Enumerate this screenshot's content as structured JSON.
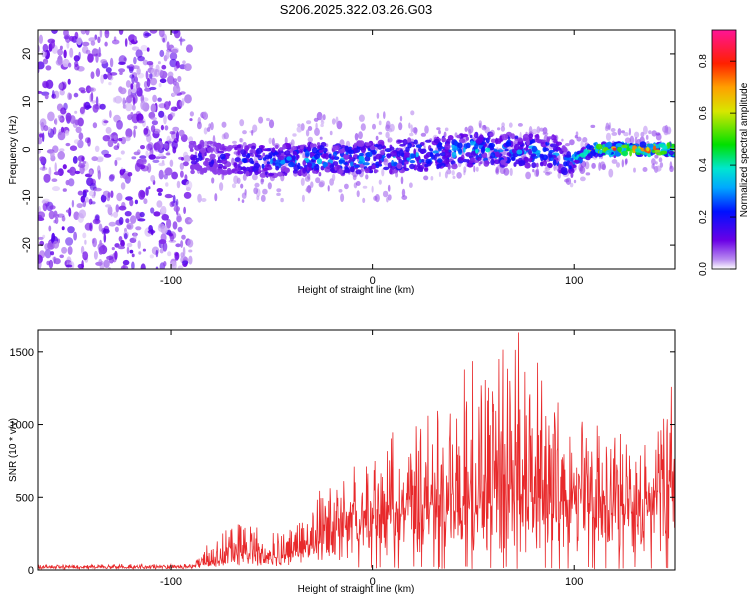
{
  "title": "S206.2025.322.03.26.G03",
  "chart_data": [
    {
      "type": "heatmap",
      "xlabel": "Height of straight line (km)",
      "ylabel": "Frequency (Hz)",
      "xlim": [
        -166,
        150
      ],
      "ylim": [
        -25,
        25
      ],
      "xticks": [
        -100,
        0,
        100
      ],
      "yticks": [
        -20,
        -10,
        0,
        10,
        20
      ],
      "colorbar": {
        "label": "Normalized spectral amplitude",
        "range": [
          0,
          0.92
        ],
        "ticks": [
          0.0,
          0.2,
          0.4,
          0.6,
          0.8
        ],
        "tick_labels": [
          "0.0",
          "0.2",
          "0.4",
          "0.6",
          "0.8"
        ],
        "colormap": "rainbow (purple-blue-cyan-green-yellow-orange-red-magenta)"
      },
      "noise_region_x": [
        -166,
        -90
      ],
      "signal_track": {
        "x": [
          -90,
          -70,
          -50,
          -30,
          -10,
          10,
          30,
          50,
          70,
          90,
          95,
          110,
          130,
          150
        ],
        "frequency_hz": [
          -1.5,
          -2,
          -2.5,
          -2,
          -2,
          -1.5,
          -1,
          0,
          0,
          -0.5,
          -3,
          0,
          0,
          0
        ],
        "amplitude": [
          0.15,
          0.2,
          0.25,
          0.3,
          0.3,
          0.3,
          0.3,
          0.35,
          0.3,
          0.3,
          0.25,
          0.6,
          0.8,
          0.75
        ]
      }
    },
    {
      "type": "line",
      "xlabel": "Height of straight line (km)",
      "ylabel": "SNR (10 * v/v)",
      "xlim": [
        -166,
        150
      ],
      "ylim": [
        0,
        1650
      ],
      "xticks": [
        -100,
        0,
        100
      ],
      "yticks": [
        0,
        500,
        1000,
        1500
      ],
      "color": "#e8292b",
      "envelope": {
        "x": [
          -166,
          -90,
          -85,
          -75,
          -65,
          -55,
          -45,
          -35,
          -25,
          -15,
          -5,
          5,
          15,
          25,
          35,
          45,
          55,
          65,
          75,
          85,
          95,
          105,
          115,
          125,
          135,
          145,
          150
        ],
        "baseline": [
          20,
          20,
          30,
          60,
          80,
          70,
          70,
          110,
          160,
          220,
          260,
          310,
          330,
          360,
          370,
          380,
          390,
          380,
          380,
          370,
          370,
          360,
          350,
          360,
          370,
          380,
          380
        ],
        "peak": [
          35,
          40,
          120,
          300,
          340,
          260,
          260,
          400,
          560,
          650,
          720,
          850,
          900,
          1000,
          1150,
          1300,
          1400,
          1450,
          1660,
          1500,
          1100,
          1020,
          980,
          900,
          1000,
          1250,
          1150
        ]
      }
    }
  ]
}
